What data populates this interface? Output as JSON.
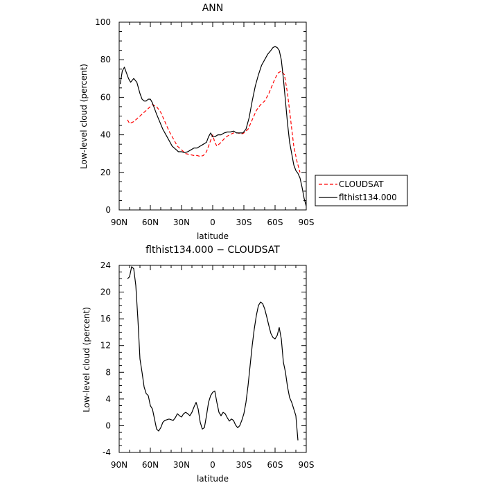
{
  "chart_data": [
    {
      "type": "line",
      "title": "ANN",
      "xlabel": "latitude",
      "ylabel": "Low-level cloud (percent)",
      "x_ticks": [
        -90,
        -60,
        -30,
        0,
        30,
        60,
        90
      ],
      "x_tick_labels": [
        "90N",
        "60N",
        "30N",
        "0",
        "30S",
        "60S",
        "90S"
      ],
      "xlim": [
        -90,
        90
      ],
      "ylim": [
        0,
        100
      ],
      "y_ticks": [
        0,
        20,
        40,
        60,
        80,
        100
      ],
      "legend": {
        "placement": "right",
        "entries": [
          "CLOUDSAT",
          "flthist134.000"
        ]
      },
      "series": [
        {
          "name": "CLOUDSAT",
          "color": "#ff0000",
          "dash": "dashed",
          "x": [
            -82,
            -80,
            -76,
            -72,
            -68,
            -64,
            -60,
            -58,
            -54,
            -50,
            -46,
            -42,
            -38,
            -34,
            -30,
            -26,
            -22,
            -18,
            -15,
            -12,
            -9,
            -6,
            -4,
            -2,
            0,
            2,
            4,
            8,
            12,
            16,
            20,
            24,
            28,
            30,
            34,
            38,
            42,
            46,
            50,
            54,
            57,
            60,
            63,
            66,
            69,
            72,
            75,
            78,
            81,
            84
          ],
          "y": [
            48,
            46,
            47,
            49,
            51,
            53,
            55,
            56,
            55,
            52,
            47,
            42,
            38,
            34,
            32,
            30,
            29.5,
            29,
            29,
            28.5,
            29,
            31,
            34,
            37,
            40,
            36,
            34,
            36,
            38.5,
            40,
            41,
            41,
            40.5,
            41,
            43,
            48,
            53,
            56,
            58,
            62,
            66,
            70,
            73,
            74,
            72,
            62,
            48,
            34,
            26,
            20
          ]
        },
        {
          "name": "flthist134.000",
          "color": "#000000",
          "dash": "solid",
          "x": [
            -89,
            -87,
            -85,
            -83,
            -81,
            -79,
            -76,
            -73,
            -70,
            -68,
            -66,
            -64,
            -62,
            -60,
            -58,
            -56,
            -54,
            -51,
            -48,
            -45,
            -42,
            -39,
            -36,
            -33,
            -30,
            -27,
            -24,
            -21,
            -18,
            -15,
            -12,
            -9,
            -6,
            -4,
            -2,
            0,
            2,
            5,
            8,
            11,
            14,
            17,
            20,
            23,
            26,
            29,
            32,
            35,
            38,
            41,
            44,
            47,
            50,
            53,
            56,
            58,
            60,
            62,
            64,
            66,
            68,
            70,
            72,
            74,
            76,
            78,
            80,
            82,
            84,
            86,
            88,
            90
          ],
          "y": [
            67,
            74,
            76,
            73,
            70,
            68,
            70,
            68,
            62,
            59,
            58,
            58,
            59,
            59,
            57,
            54,
            51,
            47,
            43,
            40,
            37,
            34,
            32.5,
            31,
            31,
            30.5,
            31,
            32,
            33,
            33,
            34,
            35,
            36,
            39,
            41,
            39,
            39,
            40,
            40,
            41,
            41.5,
            41.5,
            42,
            41,
            41,
            41,
            43,
            49,
            58,
            66,
            72,
            77,
            80,
            83,
            85,
            86.5,
            87,
            86.5,
            85,
            80,
            70,
            58,
            46,
            36,
            30,
            24,
            21,
            19.5,
            17,
            12,
            6,
            2
          ]
        }
      ]
    },
    {
      "type": "line",
      "title": "flthist134.000 − CLOUDSAT",
      "xlabel": "latitude",
      "ylabel": "Low-level cloud (percent)",
      "x_ticks": [
        -90,
        -60,
        -30,
        0,
        30,
        60,
        90
      ],
      "x_tick_labels": [
        "90N",
        "60N",
        "30N",
        "0",
        "30S",
        "60S",
        "90S"
      ],
      "xlim": [
        -90,
        90
      ],
      "ylim": [
        -4,
        24
      ],
      "y_ticks": [
        -4,
        0,
        4,
        8,
        12,
        16,
        20,
        24
      ],
      "series": [
        {
          "color": "#000000",
          "dash": "solid",
          "x": [
            -82,
            -80,
            -78,
            -76,
            -74,
            -72,
            -70,
            -68,
            -66,
            -64,
            -62,
            -60,
            -58,
            -56,
            -54,
            -52,
            -50,
            -48,
            -46,
            -44,
            -42,
            -40,
            -38,
            -36,
            -34,
            -32,
            -30,
            -28,
            -26,
            -24,
            -22,
            -20,
            -18,
            -16,
            -14,
            -12,
            -10,
            -8,
            -6,
            -4,
            -2,
            0,
            2,
            4,
            6,
            8,
            10,
            12,
            14,
            16,
            18,
            20,
            22,
            24,
            26,
            28,
            30,
            32,
            34,
            36,
            38,
            40,
            42,
            44,
            46,
            48,
            50,
            52,
            54,
            56,
            58,
            60,
            62,
            64,
            66,
            68,
            70,
            72,
            74,
            76,
            78,
            80,
            82
          ],
          "y": [
            22,
            22.3,
            23.8,
            23.5,
            21,
            16,
            10,
            8,
            5.8,
            4.8,
            4.5,
            3,
            2.5,
            1,
            -0.5,
            -0.8,
            -0.3,
            0.5,
            0.8,
            0.9,
            1,
            0.9,
            0.8,
            1.2,
            1.8,
            1.5,
            1.3,
            1.8,
            2,
            1.8,
            1.5,
            2,
            2.8,
            3.5,
            2.5,
            0.5,
            -0.5,
            -0.3,
            1.5,
            3.5,
            4.5,
            5,
            5.2,
            3.5,
            2,
            1.5,
            2,
            1.8,
            1.2,
            0.7,
            1,
            0.8,
            0.1,
            -0.3,
            0,
            0.8,
            1.8,
            3.5,
            6,
            9,
            12,
            14.5,
            16.5,
            18,
            18.5,
            18.3,
            17.5,
            16.3,
            15,
            13.8,
            13.2,
            13,
            13.5,
            14.7,
            13,
            9.5,
            8,
            5.8,
            4.2,
            3.5,
            2.5,
            1.5,
            -2.2
          ]
        }
      ]
    }
  ]
}
